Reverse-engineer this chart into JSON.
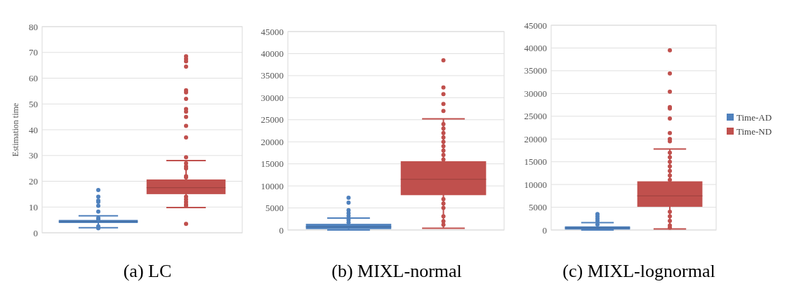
{
  "chart_data": [
    {
      "type": "box",
      "title": "(a) LC",
      "ylabel": "Estimation time",
      "categories": [
        null
      ],
      "ylim": [
        0,
        80
      ],
      "yticks": [
        0,
        10,
        20,
        30,
        40,
        50,
        60,
        70,
        80
      ],
      "grid": "y",
      "legend": false,
      "series": [
        {
          "color": "#4f81bd",
          "boxes": [
            {
              "low": 2,
              "q1": 3.8,
              "median": 4.4,
              "q3": 5,
              "high": 6.6,
              "outliers": [
                16.6,
                14,
                12.5,
                12,
                10.5,
                8.2,
                5.8,
                5.2,
                2.5,
                1.8
              ]
            }
          ]
        },
        {
          "color": "#c0504d",
          "boxes": [
            {
              "low": 9.8,
              "q1": 15,
              "median": 17.5,
              "q3": 20.7,
              "high": 28,
              "outliers": [
                68.5,
                67.5,
                66.5,
                64.5,
                55.3,
                54.5,
                52,
                48,
                47,
                45,
                41.5,
                37,
                29.3,
                27,
                25.8,
                25,
                22,
                21.5,
                14,
                13,
                12,
                11,
                10.5,
                3.5
              ]
            }
          ]
        }
      ]
    },
    {
      "type": "box",
      "title": "(b) MIXL-normal",
      "categories": [
        null
      ],
      "ylim": [
        0,
        45000
      ],
      "yticks": [
        0,
        5000,
        10000,
        15000,
        20000,
        25000,
        30000,
        35000,
        40000,
        45000
      ],
      "grid": "y",
      "legend": false,
      "series": [
        {
          "color": "#4f81bd",
          "boxes": [
            {
              "low": 0,
              "q1": 200,
              "median": 700,
              "q3": 1400,
              "high": 2700,
              "outliers": [
                7300,
                6200,
                4500,
                3800,
                3200,
                2300,
                1700
              ]
            }
          ]
        },
        {
          "color": "#c0504d",
          "boxes": [
            {
              "low": 400,
              "q1": 7900,
              "median": 11500,
              "q3": 15600,
              "high": 25200,
              "outliers": [
                38500,
                32300,
                30800,
                28600,
                27000,
                24000,
                23000,
                22000,
                21000,
                20000,
                19000,
                18000,
                17000,
                16000,
                7000,
                6000,
                5000,
                3100,
                2000,
                1200
              ]
            }
          ]
        }
      ]
    },
    {
      "type": "box",
      "title": "(c) MIXL-lognormal",
      "categories": [
        null
      ],
      "ylim": [
        0,
        45000
      ],
      "yticks": [
        0,
        5000,
        10000,
        15000,
        20000,
        25000,
        30000,
        35000,
        40000,
        45000
      ],
      "grid": "y",
      "legend": "right",
      "series": [
        {
          "name": "Time-AD",
          "color": "#4f81bd",
          "boxes": [
            {
              "low": 0,
              "q1": 100,
              "median": 450,
              "q3": 800,
              "high": 1600,
              "outliers": [
                3500,
                3000,
                2500,
                2000,
                1200
              ]
            }
          ]
        },
        {
          "name": "Time-ND",
          "color": "#c0504d",
          "boxes": [
            {
              "low": 250,
              "q1": 5100,
              "median": 7500,
              "q3": 10700,
              "high": 17800,
              "outliers": [
                39500,
                34400,
                30400,
                27000,
                26700,
                24500,
                21300,
                20000,
                19500,
                17000,
                16000,
                15000,
                14000,
                13000,
                12000,
                11000,
                4000,
                3000,
                2000,
                1000,
                500
              ]
            }
          ]
        }
      ]
    }
  ]
}
